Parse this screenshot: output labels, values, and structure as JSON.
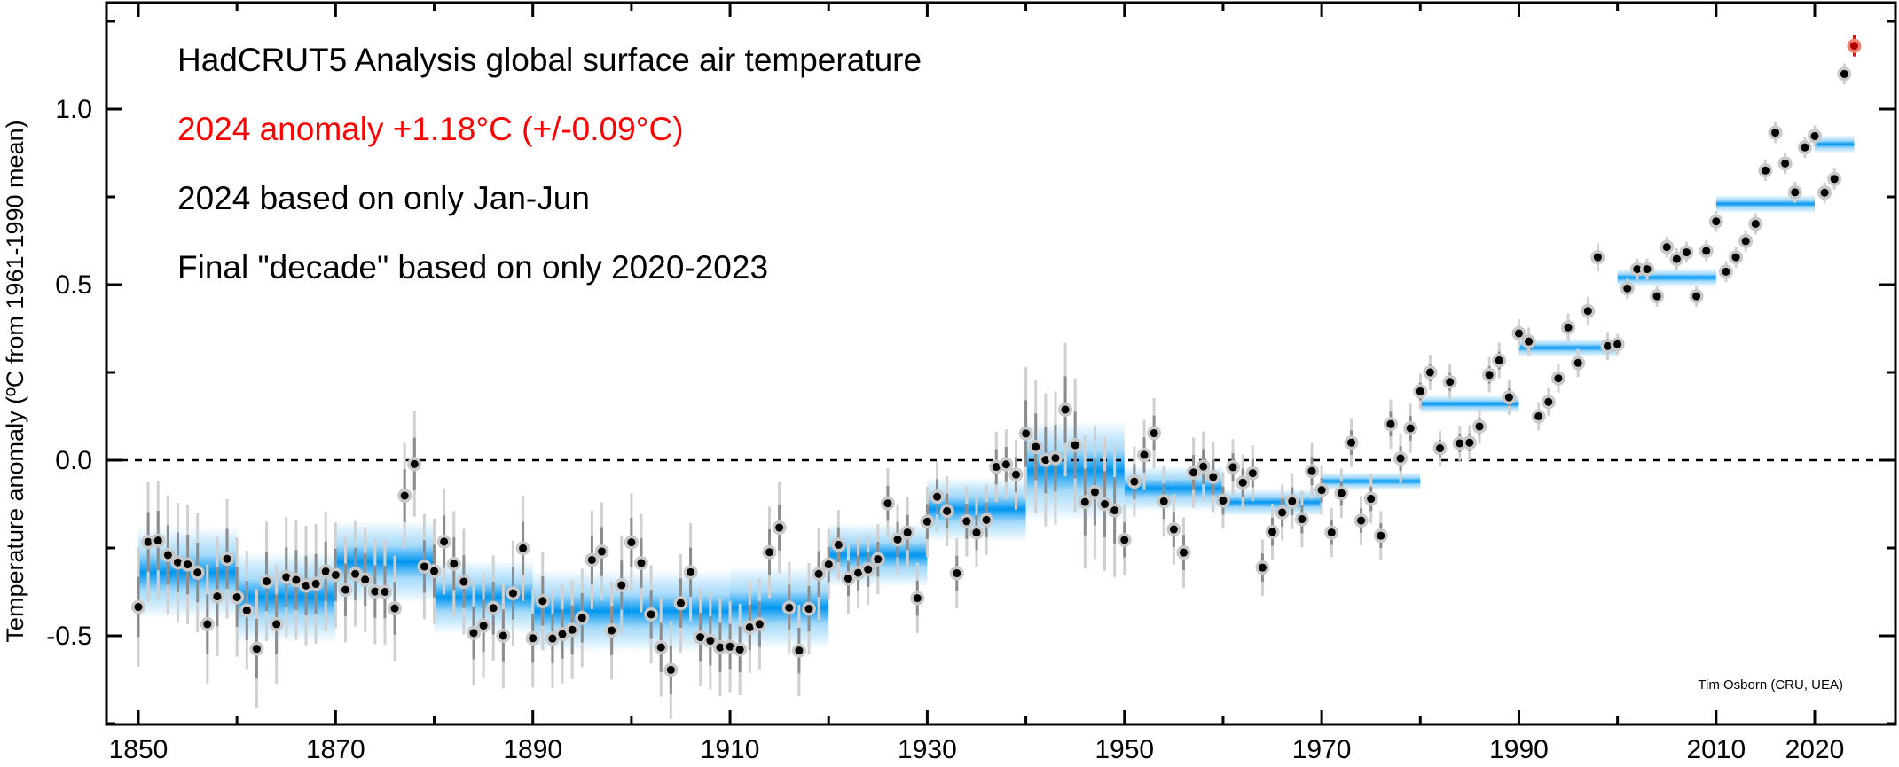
{
  "chart_data": {
    "type": "scatter",
    "title_lines": [
      "HadCRUT5 Analysis global surface air temperature",
      "2024 anomaly +1.18°C (+/-0.09°C)",
      "2024 based on only Jan-Jun",
      "Final \"decade\" based on only 2020-2023"
    ],
    "title_colors": [
      "#000000",
      "#ff0000",
      "#000000",
      "#000000"
    ],
    "credit": "Tim Osborn (CRU, UEA)",
    "ylabel": "Temperature anomaly (ºC from 1961-1990 mean)",
    "xlabel": "",
    "xlim": [
      1847,
      2028
    ],
    "ylim": [
      -0.75,
      1.3
    ],
    "x_ticks": [
      1850,
      1870,
      1890,
      1910,
      1930,
      1950,
      1970,
      1990,
      2010,
      2020
    ],
    "x_tick_labels": [
      "1850",
      "1870",
      "1890",
      "1910",
      "1930",
      "1950",
      "1970",
      "1990",
      "2010",
      "2020"
    ],
    "x_minor_ticks": [
      1860,
      1880,
      1900,
      1920,
      1940,
      1960,
      1980,
      2000,
      2030
    ],
    "y_ticks": [
      -0.5,
      0.0,
      0.5,
      1.0
    ],
    "y_tick_labels": [
      "-0.5",
      "0.0",
      "0.5",
      "1.0"
    ],
    "y_minor_ticks": [
      -0.75,
      -0.25,
      0.25,
      0.75,
      1.25
    ],
    "zero_line": true,
    "colors": {
      "point": "#000000",
      "halo": "#c8c8c8",
      "errbar_outer": "#d0d0d0",
      "errbar_inner": "#8c8c8c",
      "band": "#0096f0",
      "highlight": "#ff0000",
      "highlight_fill": "#f08070"
    },
    "annual": {
      "start_year": 1850,
      "values": [
        -0.418,
        -0.233,
        -0.229,
        -0.27,
        -0.291,
        -0.297,
        -0.32,
        -0.467,
        -0.388,
        -0.281,
        -0.39,
        -0.428,
        -0.537,
        -0.345,
        -0.467,
        -0.333,
        -0.341,
        -0.357,
        -0.352,
        -0.317,
        -0.327,
        -0.369,
        -0.324,
        -0.34,
        -0.374,
        -0.375,
        -0.422,
        -0.101,
        -0.011,
        -0.303,
        -0.316,
        -0.232,
        -0.295,
        -0.346,
        -0.492,
        -0.471,
        -0.421,
        -0.5,
        -0.379,
        -0.251,
        -0.507,
        -0.401,
        -0.508,
        -0.495,
        -0.483,
        -0.449,
        -0.284,
        -0.26,
        -0.485,
        -0.356,
        -0.234,
        -0.293,
        -0.439,
        -0.533,
        -0.597,
        -0.407,
        -0.319,
        -0.504,
        -0.514,
        -0.533,
        -0.531,
        -0.539,
        -0.476,
        -0.467,
        -0.262,
        -0.192,
        -0.42,
        -0.542,
        -0.423,
        -0.324,
        -0.297,
        -0.241,
        -0.337,
        -0.321,
        -0.311,
        -0.282,
        -0.123,
        -0.226,
        -0.206,
        -0.393,
        -0.175,
        -0.104,
        -0.145,
        -0.322,
        -0.174,
        -0.206,
        -0.17,
        -0.019,
        -0.012,
        -0.041,
        0.076,
        0.038,
        0.001,
        0.006,
        0.144,
        0.043,
        -0.119,
        -0.091,
        -0.125,
        -0.143,
        -0.227,
        -0.061,
        0.015,
        0.077,
        -0.117,
        -0.197,
        -0.263,
        -0.035,
        -0.018,
        -0.048,
        -0.115,
        -0.02,
        -0.064,
        -0.037,
        -0.306,
        -0.204,
        -0.149,
        -0.117,
        -0.168,
        -0.031,
        -0.085,
        -0.206,
        -0.094,
        0.05,
        -0.172,
        -0.11,
        -0.215,
        0.103,
        0.005,
        0.091,
        0.196,
        0.25,
        0.034,
        0.223,
        0.048,
        0.05,
        0.096,
        0.243,
        0.284,
        0.179,
        0.361,
        0.338,
        0.125,
        0.166,
        0.233,
        0.378,
        0.277,
        0.425,
        0.578,
        0.325,
        0.33,
        0.489,
        0.544,
        0.544,
        0.467,
        0.607,
        0.573,
        0.592,
        0.467,
        0.596,
        0.68,
        0.537,
        0.578,
        0.624,
        0.673,
        0.825,
        0.933,
        0.845,
        0.763,
        0.891,
        0.923,
        0.762,
        0.801,
        1.1,
        1.18
      ],
      "uncertainty_95_by_decade": [
        0.17,
        0.17,
        0.15,
        0.15,
        0.14,
        0.14,
        0.13,
        0.1,
        0.1,
        0.19,
        0.1,
        0.08,
        0.07,
        0.05,
        0.04,
        0.03,
        0.03,
        0.03,
        0.09
      ]
    },
    "decadal": {
      "start_years": [
        1850,
        1860,
        1870,
        1880,
        1890,
        1900,
        1910,
        1920,
        1930,
        1940,
        1950,
        1960,
        1970,
        1980,
        1990,
        2000,
        2010,
        2020
      ],
      "end_years": [
        1860,
        1870,
        1880,
        1890,
        1900,
        1910,
        1920,
        1930,
        1940,
        1950,
        1960,
        1970,
        1980,
        1990,
        2000,
        2010,
        2020,
        2024
      ],
      "values": [
        -0.32,
        -0.39,
        -0.29,
        -0.39,
        -0.43,
        -0.43,
        -0.42,
        -0.27,
        -0.14,
        -0.03,
        -0.08,
        -0.12,
        -0.06,
        0.16,
        0.32,
        0.52,
        0.73,
        0.9
      ],
      "uncertainty": [
        0.1,
        0.1,
        0.09,
        0.08,
        0.09,
        0.09,
        0.09,
        0.07,
        0.07,
        0.11,
        0.05,
        0.03,
        0.02,
        0.02,
        0.02,
        0.02,
        0.02,
        0.02
      ]
    }
  }
}
